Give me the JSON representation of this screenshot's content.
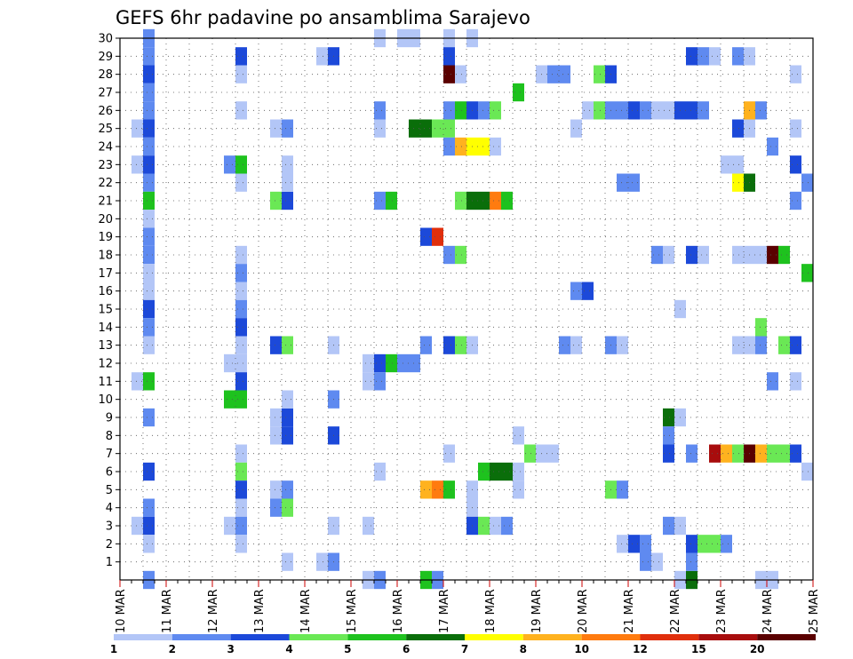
{
  "chart_data": {
    "type": "heatmap",
    "title": "GEFS 6hr padavine po ansamblima Sarajevo",
    "xlabel": "",
    "ylabel": "",
    "x_tick_labels": [
      "10 MAR",
      "11 MAR",
      "12 MAR",
      "13 MAR",
      "14 MAR",
      "15 MAR",
      "16 MAR",
      "17 MAR",
      "18 MAR",
      "19 MAR",
      "20 MAR",
      "21 MAR",
      "22 MAR",
      "23 MAR",
      "24 MAR",
      "25 MAR"
    ],
    "xlim": [
      0,
      15
    ],
    "ylim": [
      0,
      30
    ],
    "y_ticks": [
      1,
      2,
      3,
      4,
      5,
      6,
      7,
      8,
      9,
      10,
      11,
      12,
      13,
      14,
      15,
      16,
      17,
      18,
      19,
      20,
      21,
      22,
      23,
      24,
      25,
      26,
      27,
      28,
      29,
      30
    ],
    "grid": "dotted",
    "step_days": 0.25,
    "color_scale": {
      "labels": [
        "1",
        "2",
        "3",
        "4",
        "5",
        "6",
        "7",
        "8",
        "10",
        "12",
        "15",
        "20"
      ],
      "colors": [
        "#b3c6f7",
        "#5f8af0",
        "#1c49d9",
        "#6ae855",
        "#1ec21e",
        "#0a6e0a",
        "#ffff00",
        "#ffb21f",
        "#ff7b0f",
        "#e02f0c",
        "#a80d0d",
        "#5a0000"
      ]
    },
    "cells": [
      [
        0.5,
        30,
        1
      ],
      [
        0.5,
        29,
        1
      ],
      [
        0.5,
        28,
        2
      ],
      [
        0.5,
        27,
        1
      ],
      [
        0.5,
        26,
        1
      ],
      [
        0.5,
        25,
        2
      ],
      [
        0.5,
        24,
        1
      ],
      [
        0.5,
        23,
        2
      ],
      [
        0.5,
        22,
        1
      ],
      [
        0.5,
        21,
        4
      ],
      [
        0.5,
        20,
        0
      ],
      [
        0.5,
        19,
        1
      ],
      [
        0.5,
        18,
        1
      ],
      [
        0.5,
        17,
        0
      ],
      [
        0.5,
        16,
        0
      ],
      [
        0.5,
        15,
        2
      ],
      [
        0.5,
        14,
        1
      ],
      [
        0.5,
        13,
        0
      ],
      [
        0.5,
        11,
        4
      ],
      [
        0.5,
        9,
        1
      ],
      [
        0.5,
        6,
        2
      ],
      [
        0.5,
        4,
        1
      ],
      [
        0.5,
        3,
        2
      ],
      [
        0.5,
        2,
        0
      ],
      [
        0.5,
        0,
        1
      ],
      [
        0.25,
        25,
        0
      ],
      [
        0.25,
        23,
        0
      ],
      [
        0.25,
        11,
        0
      ],
      [
        0.25,
        3,
        0
      ],
      [
        2.5,
        29,
        2
      ],
      [
        2.5,
        28,
        0
      ],
      [
        2.5,
        26,
        0
      ],
      [
        2.5,
        23,
        4
      ],
      [
        2.5,
        22,
        0
      ],
      [
        2.5,
        18,
        0
      ],
      [
        2.5,
        17,
        1
      ],
      [
        2.5,
        16,
        0
      ],
      [
        2.5,
        15,
        1
      ],
      [
        2.5,
        14,
        2
      ],
      [
        2.5,
        13,
        0
      ],
      [
        2.5,
        12,
        0
      ],
      [
        2.5,
        11,
        2
      ],
      [
        2.5,
        10,
        4
      ],
      [
        2.5,
        7,
        0
      ],
      [
        2.5,
        6,
        3
      ],
      [
        2.5,
        5,
        2
      ],
      [
        2.5,
        4,
        0
      ],
      [
        2.5,
        3,
        1
      ],
      [
        2.5,
        2,
        0
      ],
      [
        2.25,
        23,
        1
      ],
      [
        2.25,
        12,
        0
      ],
      [
        2.25,
        10,
        4
      ],
      [
        2.25,
        3,
        0
      ],
      [
        3.25,
        25,
        0
      ],
      [
        3.5,
        25,
        1
      ],
      [
        3.25,
        21,
        3
      ],
      [
        3.5,
        21,
        2
      ],
      [
        3.25,
        13,
        2
      ],
      [
        3.5,
        13,
        3
      ],
      [
        3.25,
        9,
        0
      ],
      [
        3.5,
        9,
        2
      ],
      [
        3.25,
        8,
        0
      ],
      [
        3.5,
        8,
        2
      ],
      [
        3.25,
        5,
        0
      ],
      [
        3.5,
        5,
        1
      ],
      [
        3.25,
        4,
        1
      ],
      [
        3.5,
        4,
        3
      ],
      [
        3.5,
        23,
        0
      ],
      [
        3.5,
        22,
        0
      ],
      [
        3.5,
        10,
        0
      ],
      [
        3.5,
        1,
        0
      ],
      [
        4.25,
        29,
        0
      ],
      [
        4.5,
        29,
        2
      ],
      [
        4.5,
        13,
        0
      ],
      [
        4.5,
        10,
        1
      ],
      [
        4.5,
        8,
        2
      ],
      [
        4.5,
        3,
        0
      ],
      [
        4.25,
        1,
        0
      ],
      [
        4.5,
        1,
        1
      ],
      [
        5.25,
        12,
        0
      ],
      [
        5.5,
        12,
        2
      ],
      [
        5.75,
        12,
        4
      ],
      [
        5.25,
        11,
        0
      ],
      [
        5.5,
        11,
        1
      ],
      [
        5.25,
        3,
        0
      ],
      [
        5.25,
        0,
        0
      ],
      [
        5.5,
        0,
        1
      ],
      [
        5.5,
        30,
        0
      ],
      [
        5.5,
        26,
        1
      ],
      [
        5.5,
        25,
        0
      ],
      [
        5.5,
        21,
        1
      ],
      [
        5.75,
        21,
        4
      ],
      [
        5.5,
        6,
        0
      ],
      [
        6.0,
        12,
        1
      ],
      [
        6.25,
        12,
        1
      ],
      [
        6.25,
        25,
        5
      ],
      [
        6.5,
        25,
        5
      ],
      [
        6.75,
        25,
        3
      ],
      [
        6.0,
        30,
        0
      ],
      [
        6.25,
        30,
        0
      ],
      [
        6.5,
        19,
        2
      ],
      [
        6.75,
        19,
        9
      ],
      [
        6.5,
        13,
        1
      ],
      [
        6.5,
        5,
        7
      ],
      [
        6.75,
        5,
        8
      ],
      [
        6.5,
        0,
        4
      ],
      [
        6.75,
        0,
        1
      ],
      [
        7.0,
        30,
        0
      ],
      [
        7.0,
        29,
        2
      ],
      [
        7.0,
        28,
        11
      ],
      [
        7.25,
        28,
        0
      ],
      [
        7.0,
        26,
        1
      ],
      [
        7.25,
        26,
        4
      ],
      [
        7.5,
        26,
        2
      ],
      [
        7.75,
        26,
        1
      ],
      [
        8.0,
        26,
        3
      ],
      [
        7.0,
        25,
        3
      ],
      [
        7.0,
        24,
        1
      ],
      [
        7.25,
        24,
        7
      ],
      [
        7.5,
        24,
        6
      ],
      [
        7.75,
        24,
        6
      ],
      [
        8.0,
        24,
        0
      ],
      [
        7.0,
        18,
        1
      ],
      [
        7.25,
        18,
        3
      ],
      [
        7.25,
        21,
        3
      ],
      [
        7.5,
        21,
        5
      ],
      [
        7.75,
        21,
        5
      ],
      [
        8.0,
        21,
        8
      ],
      [
        8.25,
        21,
        4
      ],
      [
        7.0,
        13,
        2
      ],
      [
        7.25,
        13,
        3
      ],
      [
        7.5,
        13,
        0
      ],
      [
        7.0,
        7,
        0
      ],
      [
        7.0,
        5,
        4
      ],
      [
        7.75,
        6,
        4
      ],
      [
        8.0,
        6,
        5
      ],
      [
        8.25,
        6,
        5
      ],
      [
        8.5,
        6,
        0
      ],
      [
        7.5,
        5,
        0
      ],
      [
        8.5,
        5,
        0
      ],
      [
        7.5,
        4,
        0
      ],
      [
        7.5,
        3,
        2
      ],
      [
        7.75,
        3,
        3
      ],
      [
        8.0,
        3,
        0
      ],
      [
        8.25,
        3,
        1
      ],
      [
        7.5,
        30,
        0
      ],
      [
        8.5,
        8,
        0
      ],
      [
        8.5,
        27,
        4
      ],
      [
        8.75,
        7,
        3
      ],
      [
        9.0,
        28,
        0
      ],
      [
        9.25,
        28,
        1
      ],
      [
        9.5,
        28,
        1
      ],
      [
        9.0,
        7,
        0
      ],
      [
        9.25,
        7,
        0
      ],
      [
        9.5,
        13,
        1
      ],
      [
        9.75,
        13,
        0
      ],
      [
        9.75,
        16,
        1
      ],
      [
        10.0,
        16,
        2
      ],
      [
        9.75,
        25,
        0
      ],
      [
        10.0,
        26,
        0
      ],
      [
        10.25,
        26,
        3
      ],
      [
        10.5,
        26,
        1
      ],
      [
        10.75,
        26,
        1
      ],
      [
        11.0,
        26,
        2
      ],
      [
        11.25,
        26,
        1
      ],
      [
        11.5,
        26,
        0
      ],
      [
        11.75,
        26,
        0
      ],
      [
        12.0,
        26,
        2
      ],
      [
        12.25,
        26,
        2
      ],
      [
        12.5,
        26,
        1
      ],
      [
        10.25,
        28,
        3
      ],
      [
        10.5,
        28,
        2
      ],
      [
        10.5,
        13,
        1
      ],
      [
        10.75,
        13,
        0
      ],
      [
        10.5,
        5,
        3
      ],
      [
        10.75,
        5,
        1
      ],
      [
        10.75,
        22,
        1
      ],
      [
        11.0,
        22,
        1
      ],
      [
        10.75,
        2,
        0
      ],
      [
        11.0,
        2,
        2
      ],
      [
        11.25,
        2,
        1
      ],
      [
        11.25,
        1,
        1
      ],
      [
        11.5,
        1,
        0
      ],
      [
        11.5,
        18,
        1
      ],
      [
        11.75,
        18,
        0
      ],
      [
        11.75,
        9,
        5
      ],
      [
        12.0,
        9,
        0
      ],
      [
        11.75,
        8,
        1
      ],
      [
        11.75,
        7,
        2
      ],
      [
        11.75,
        3,
        1
      ],
      [
        12.0,
        3,
        0
      ],
      [
        12.0,
        0,
        0
      ],
      [
        12.25,
        0,
        5
      ],
      [
        12.25,
        1,
        1
      ],
      [
        12.25,
        2,
        2
      ],
      [
        12.5,
        2,
        3
      ],
      [
        12.75,
        2,
        3
      ],
      [
        13.0,
        2,
        1
      ],
      [
        12.25,
        29,
        2
      ],
      [
        12.5,
        29,
        1
      ],
      [
        12.75,
        29,
        0
      ],
      [
        12.25,
        18,
        2
      ],
      [
        12.5,
        18,
        0
      ],
      [
        12.0,
        15,
        0
      ],
      [
        12.25,
        7,
        1
      ],
      [
        12.75,
        7,
        10
      ],
      [
        13.0,
        7,
        7
      ],
      [
        13.25,
        7,
        3
      ],
      [
        13.5,
        7,
        11
      ],
      [
        13.75,
        7,
        7
      ],
      [
        14.0,
        7,
        3
      ],
      [
        14.25,
        7,
        3
      ],
      [
        14.5,
        7,
        2
      ],
      [
        13.25,
        29,
        1
      ],
      [
        13.5,
        29,
        0
      ],
      [
        13.0,
        23,
        0
      ],
      [
        13.25,
        23,
        0
      ],
      [
        13.25,
        22,
        6
      ],
      [
        13.5,
        22,
        5
      ],
      [
        13.25,
        25,
        2
      ],
      [
        13.5,
        25,
        0
      ],
      [
        13.5,
        26,
        7
      ],
      [
        13.75,
        26,
        1
      ],
      [
        13.25,
        18,
        0
      ],
      [
        13.5,
        18,
        0
      ],
      [
        13.75,
        18,
        0
      ],
      [
        14.0,
        18,
        11
      ],
      [
        14.25,
        18,
        4
      ],
      [
        13.25,
        13,
        0
      ],
      [
        13.5,
        13,
        0
      ],
      [
        13.75,
        14,
        3
      ],
      [
        13.75,
        13,
        1
      ],
      [
        14.25,
        13,
        3
      ],
      [
        14.5,
        13,
        2
      ],
      [
        14.0,
        24,
        1
      ],
      [
        14.0,
        11,
        1
      ],
      [
        14.5,
        11,
        0
      ],
      [
        14.5,
        25,
        0
      ],
      [
        14.5,
        28,
        0
      ],
      [
        14.5,
        23,
        2
      ],
      [
        14.5,
        21,
        1
      ],
      [
        14.75,
        22,
        1
      ],
      [
        14.75,
        6,
        0
      ],
      [
        14.75,
        17,
        4
      ],
      [
        13.75,
        0,
        0
      ],
      [
        14.0,
        0,
        0
      ]
    ]
  }
}
